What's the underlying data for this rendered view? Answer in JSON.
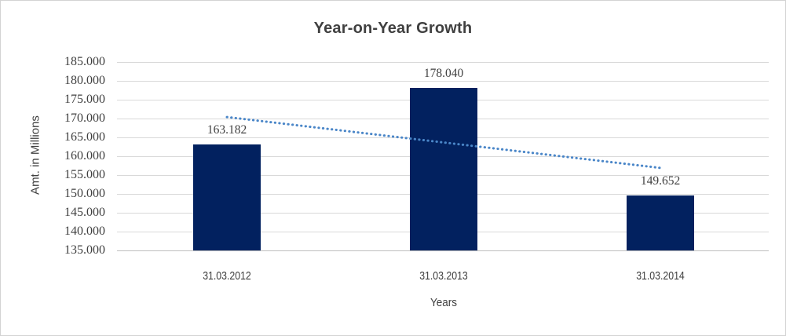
{
  "frame": {
    "background": "#FFFFFF",
    "border_color": "#D3D3D3"
  },
  "chart_data": {
    "type": "bar",
    "title": "Year-on-Year Growth",
    "xlabel": "Years",
    "ylabel": "Amt. in Millions",
    "categories": [
      "31.03.2012",
      "31.03.2013",
      "31.03.2014"
    ],
    "values": [
      163182,
      178040,
      149652
    ],
    "data_labels": [
      "163.182",
      "178.040",
      "149.652"
    ],
    "ylim": [
      135000,
      185000
    ],
    "ytick_step": 5000,
    "ytick_labels": [
      "185.000",
      "180.000",
      "175.000",
      "170.000",
      "165.000",
      "160.000",
      "155.000",
      "150.000",
      "145.000",
      "140.000",
      "135.000"
    ],
    "grid": true,
    "legend": "none",
    "bar_color": "#02215F",
    "gridline_color": "#D9D9D9",
    "baseline_color": "#BFBFBF",
    "text_color": "#404040",
    "trendline": {
      "type": "linear",
      "style": "dotted",
      "color": "#4A86C8",
      "start_value": 170400,
      "end_value": 156900
    }
  }
}
